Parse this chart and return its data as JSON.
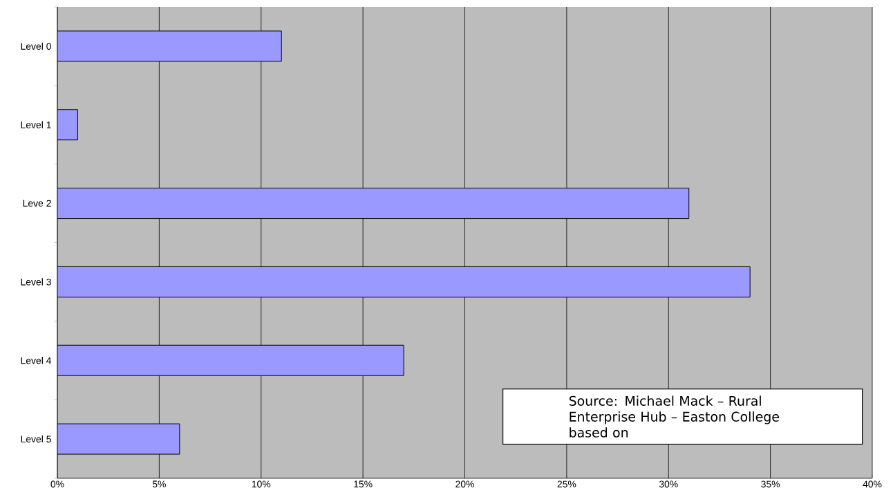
{
  "chart_data": {
    "type": "bar",
    "orientation": "horizontal",
    "categories": [
      "Level 0",
      "Level 1",
      "Leve 2",
      "Level 3",
      "Level 4",
      "Level 5"
    ],
    "values": [
      11,
      1,
      31,
      34,
      17,
      6
    ],
    "color": "#9999ff",
    "xlim": [
      0,
      40
    ],
    "xticks": [
      {
        "value": 0,
        "label": "0%"
      },
      {
        "value": 5,
        "label": "5%"
      },
      {
        "value": 10,
        "label": "10%"
      },
      {
        "value": 15,
        "label": "15%"
      },
      {
        "value": 20,
        "label": "20%"
      },
      {
        "value": 25,
        "label": "25%"
      },
      {
        "value": 30,
        "label": "30%"
      },
      {
        "value": 35,
        "label": "35%"
      },
      {
        "value": 40,
        "label": "40%"
      }
    ],
    "grid": "x",
    "annotations": [
      "Source:  Michael Mack – Rural Enterprise Hub – Easton College based on"
    ]
  }
}
